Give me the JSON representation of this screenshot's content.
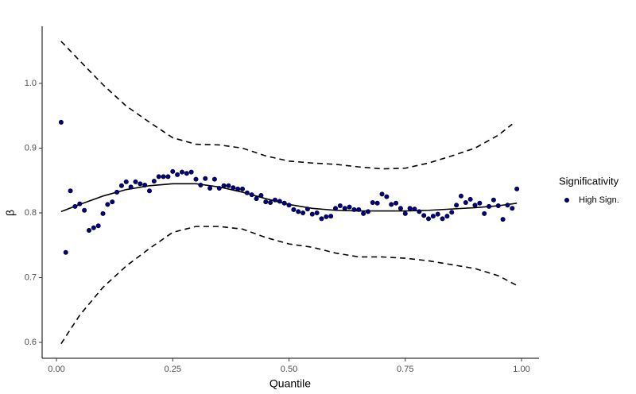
{
  "chart_data": {
    "type": "scatter",
    "xlabel": "Quantile",
    "ylabel": "β",
    "xlim": [
      -0.0308,
      1.0376
    ],
    "ylim": [
      0.5755,
      1.0883
    ],
    "xticks": [
      {
        "value": 0,
        "label": "0.00"
      },
      {
        "value": 0.25,
        "label": "0.25"
      },
      {
        "value": 0.5,
        "label": "0.50"
      },
      {
        "value": 0.75,
        "label": "0.75"
      },
      {
        "value": 1,
        "label": "1.00"
      }
    ],
    "yticks": [
      0.6,
      0.7,
      0.8,
      0.9,
      {
        "value": 1,
        "label": "1.0"
      }
    ],
    "legend_title": "Significativity",
    "legend": "right",
    "grid": false,
    "series": [
      {
        "name": "High Sign.",
        "color": "#00008b",
        "x": [
          0.01,
          0.02,
          0.03,
          0.04,
          0.05,
          0.06,
          0.07,
          0.08,
          0.09,
          0.1,
          0.11,
          0.12,
          0.13,
          0.14,
          0.15,
          0.16,
          0.17,
          0.18,
          0.19,
          0.2,
          0.21,
          0.22,
          0.23,
          0.24,
          0.25,
          0.26,
          0.27,
          0.28,
          0.29,
          0.3,
          0.31,
          0.32,
          0.33,
          0.34,
          0.35,
          0.36,
          0.37,
          0.38,
          0.39,
          0.4,
          0.41,
          0.42,
          0.43,
          0.44,
          0.45,
          0.46,
          0.47,
          0.48,
          0.49,
          0.5,
          0.51,
          0.52,
          0.53,
          0.54,
          0.55,
          0.56,
          0.57,
          0.58,
          0.59,
          0.6,
          0.61,
          0.62,
          0.63,
          0.64,
          0.65,
          0.66,
          0.67,
          0.68,
          0.69,
          0.7,
          0.71,
          0.72,
          0.73,
          0.74,
          0.75,
          0.76,
          0.77,
          0.78,
          0.79,
          0.8,
          0.81,
          0.82,
          0.83,
          0.84,
          0.85,
          0.86,
          0.87,
          0.88,
          0.89,
          0.9,
          0.91,
          0.92,
          0.93,
          0.94,
          0.95,
          0.96,
          0.97,
          0.98,
          0.99
        ],
        "values": [
          0.94,
          0.739,
          0.834,
          0.81,
          0.814,
          0.804,
          0.773,
          0.777,
          0.78,
          0.799,
          0.813,
          0.817,
          0.832,
          0.842,
          0.848,
          0.84,
          0.848,
          0.845,
          0.843,
          0.834,
          0.849,
          0.856,
          0.856,
          0.856,
          0.864,
          0.859,
          0.863,
          0.861,
          0.863,
          0.852,
          0.843,
          0.853,
          0.838,
          0.852,
          0.838,
          0.842,
          0.842,
          0.839,
          0.837,
          0.837,
          0.831,
          0.828,
          0.822,
          0.827,
          0.817,
          0.816,
          0.82,
          0.818,
          0.815,
          0.812,
          0.805,
          0.802,
          0.8,
          0.806,
          0.798,
          0.8,
          0.791,
          0.794,
          0.795,
          0.807,
          0.811,
          0.807,
          0.809,
          0.805,
          0.805,
          0.799,
          0.802,
          0.816,
          0.815,
          0.829,
          0.825,
          0.813,
          0.815,
          0.807,
          0.799,
          0.807,
          0.806,
          0.802,
          0.796,
          0.791,
          0.795,
          0.798,
          0.791,
          0.795,
          0.801,
          0.812,
          0.826,
          0.816,
          0.821,
          0.812,
          0.815,
          0.799,
          0.81,
          0.82,
          0.811,
          0.79,
          0.812,
          0.807,
          0.837
        ]
      }
    ],
    "lines": [
      {
        "style": "solid",
        "color": "#000000",
        "x": [
          0.01,
          0.05,
          0.1,
          0.15,
          0.2,
          0.25,
          0.3,
          0.35,
          0.4,
          0.45,
          0.5,
          0.55,
          0.6,
          0.65,
          0.7,
          0.75,
          0.8,
          0.85,
          0.9,
          0.95,
          0.99
        ],
        "values": [
          0.802,
          0.813,
          0.826,
          0.836,
          0.842,
          0.845,
          0.845,
          0.84,
          0.832,
          0.822,
          0.813,
          0.807,
          0.804,
          0.803,
          0.803,
          0.803,
          0.804,
          0.806,
          0.808,
          0.811,
          0.815
        ]
      },
      {
        "style": "dashed",
        "color": "#000000",
        "x": [
          0.01,
          0.05,
          0.1,
          0.15,
          0.2,
          0.25,
          0.3,
          0.35,
          0.4,
          0.45,
          0.5,
          0.55,
          0.6,
          0.65,
          0.7,
          0.75,
          0.8,
          0.85,
          0.9,
          0.95,
          0.98
        ],
        "values": [
          1.065,
          1.035,
          0.998,
          0.965,
          0.94,
          0.916,
          0.906,
          0.905,
          0.9,
          0.888,
          0.88,
          0.877,
          0.875,
          0.871,
          0.868,
          0.869,
          0.877,
          0.888,
          0.9,
          0.92,
          0.937
        ]
      },
      {
        "style": "dashed",
        "color": "#000000",
        "x": [
          0.01,
          0.05,
          0.1,
          0.15,
          0.2,
          0.25,
          0.3,
          0.35,
          0.4,
          0.45,
          0.5,
          0.55,
          0.6,
          0.65,
          0.7,
          0.75,
          0.8,
          0.85,
          0.9,
          0.95,
          0.99
        ],
        "values": [
          0.598,
          0.642,
          0.685,
          0.718,
          0.745,
          0.77,
          0.779,
          0.779,
          0.775,
          0.762,
          0.752,
          0.747,
          0.738,
          0.732,
          0.732,
          0.73,
          0.726,
          0.72,
          0.714,
          0.703,
          0.688
        ]
      }
    ]
  }
}
